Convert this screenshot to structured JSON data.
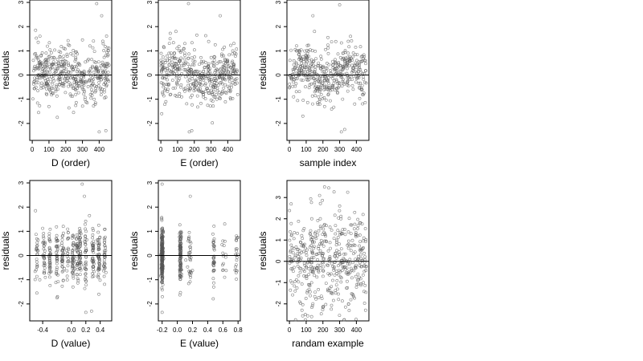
{
  "chart_data": [
    {
      "id": "d-order",
      "type": "scatter",
      "xlabel": "D (order)",
      "ylabel": "residuals",
      "xlim": [
        -15,
        475
      ],
      "ylim": [
        -2.7,
        3.1
      ],
      "xticks": [
        0,
        100,
        200,
        300,
        400
      ],
      "yticks": [
        -2,
        -1,
        0,
        1,
        2,
        3
      ],
      "hline": 0,
      "n_points": 460,
      "series": [
        {
          "x": [
            20,
            38,
            60,
            100,
            150,
            215,
            260,
            300,
            345,
            385,
            400,
            415,
            440,
            455
          ],
          "y": [
            1.85,
            -1.55,
            0.5,
            -1.3,
            -1.75,
            1.25,
            -0.8,
            1.45,
            1.2,
            2.95,
            -2.35,
            2.45,
            -2.3,
            1.0
          ]
        }
      ]
    },
    {
      "id": "e-order",
      "type": "scatter",
      "xlabel": "E (order)",
      "ylabel": "residuals",
      "xlim": [
        -15,
        475
      ],
      "ylim": [
        -2.7,
        3.1
      ],
      "xticks": [
        0,
        100,
        200,
        300,
        400
      ],
      "yticks": [
        -2,
        -1,
        0,
        1,
        2,
        3
      ],
      "hline": 0,
      "n_points": 460,
      "series": [
        {
          "x": [
            5,
            30,
            55,
            90,
            165,
            170,
            185,
            215,
            280,
            325,
            355,
            380,
            430
          ],
          "y": [
            -1.6,
            -1.1,
            1.5,
            1.8,
            2.95,
            -2.35,
            -2.3,
            1.65,
            -1.25,
            1.25,
            2.45,
            1.15,
            1.0
          ]
        }
      ]
    },
    {
      "id": "sample-index",
      "type": "scatter",
      "xlabel": "sample index",
      "ylabel": "residuals",
      "xlim": [
        -15,
        475
      ],
      "ylim": [
        -2.7,
        3.1
      ],
      "xticks": [
        0,
        100,
        200,
        300,
        400
      ],
      "yticks": [
        -2,
        -1,
        0,
        1,
        2,
        3
      ],
      "hline": 0,
      "n_points": 460,
      "series": [
        {
          "x": [
            25,
            80,
            140,
            150,
            210,
            230,
            300,
            310,
            330,
            365,
            390,
            430,
            445
          ],
          "y": [
            -0.9,
            -1.7,
            2.45,
            1.8,
            -1.3,
            1.55,
            2.9,
            -2.35,
            -2.25,
            1.6,
            -1.2,
            0.75,
            -0.75
          ]
        }
      ]
    },
    {
      "id": "d-value",
      "type": "scatter",
      "xlabel": "D (value)",
      "ylabel": "residuals",
      "xlim": [
        -0.58,
        0.56
      ],
      "ylim": [
        -2.7,
        3.1
      ],
      "xticks": [
        -0.4,
        0.0,
        0.2,
        0.4
      ],
      "xtick_labels": [
        "-0.4",
        "0.0",
        "0.2",
        "0.4"
      ],
      "yticks": [
        -2,
        -1,
        0,
        1,
        2,
        3
      ],
      "hline": 0,
      "n_points": 460,
      "series": [
        {
          "x": [
            -0.5,
            -0.48,
            -0.44,
            -0.2,
            0.15,
            0.18,
            0.2,
            0.25,
            0.28,
            0.38,
            0.48
          ],
          "y": [
            1.85,
            -1.55,
            -1.0,
            -1.75,
            2.95,
            2.45,
            -2.35,
            1.65,
            -2.3,
            1.25,
            -0.7
          ]
        }
      ]
    },
    {
      "id": "e-value",
      "type": "scatter",
      "xlabel": "E (value)",
      "ylabel": "residuals",
      "xlim": [
        -0.25,
        0.83
      ],
      "ylim": [
        -2.7,
        3.1
      ],
      "xticks": [
        -0.2,
        0.0,
        0.2,
        0.4,
        0.6,
        0.8
      ],
      "xtick_labels": [
        "-0.2",
        "0.0",
        "0.2",
        "0.4",
        "0.6",
        "0.8"
      ],
      "yticks": [
        -2,
        -1,
        0,
        1,
        2,
        3
      ],
      "hline": 0,
      "n_points": 460,
      "series": [
        {
          "x": [
            -0.2,
            -0.2,
            0.03,
            0.05,
            0.17,
            0.48,
            0.6,
            0.76,
            0.8
          ],
          "y": [
            2.95,
            -2.35,
            0.9,
            -0.6,
            2.45,
            -1.3,
            0.6,
            -0.6,
            0.75
          ]
        }
      ]
    },
    {
      "id": "random-example",
      "type": "scatter",
      "xlabel": "randam example",
      "ylabel": "residuals",
      "xlim": [
        -15,
        475
      ],
      "ylim": [
        -2.8,
        3.8
      ],
      "xticks": [
        0,
        100,
        200,
        300,
        400
      ],
      "yticks": [
        -2,
        -1,
        0,
        1,
        2,
        3
      ],
      "hline": 0,
      "n_points": 460,
      "series": [
        {
          "x": [
            10,
            75,
            95,
            180,
            210,
            235,
            250,
            300,
            335,
            390,
            440,
            455
          ],
          "y": [
            2.7,
            -2.3,
            -2.5,
            3.1,
            3.5,
            3.45,
            -2.25,
            2.6,
            -2.15,
            2.3,
            2.2,
            -2.3
          ]
        }
      ]
    }
  ]
}
